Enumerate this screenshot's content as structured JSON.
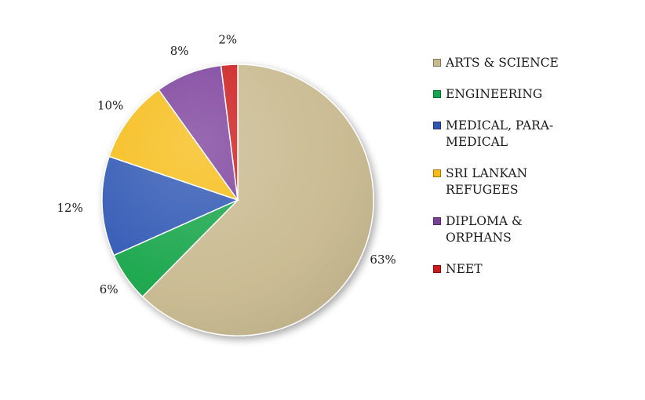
{
  "chart_data": {
    "type": "pie",
    "slices": [
      {
        "label": "ARTS & SCIENCE",
        "value": 63,
        "display": "63%",
        "color": "#c8b98e"
      },
      {
        "label": "ENGINEERING",
        "value": 6,
        "display": "6%",
        "color": "#13a54a"
      },
      {
        "label": "MEDICAL, PARA-\nMEDICAL",
        "value": 12,
        "display": "12%",
        "color": "#2f56b3"
      },
      {
        "label": "SRI LANKAN\nREFUGEES",
        "value": 10,
        "display": "10%",
        "color": "#f6bc12"
      },
      {
        "label": "DIPLOMA &\nORPHANS",
        "value": 8,
        "display": "8%",
        "color": "#7c3f9c"
      },
      {
        "label": "NEET",
        "value": 2,
        "display": "2%",
        "color": "#cc1a1a"
      }
    ],
    "legend_position": "right"
  }
}
